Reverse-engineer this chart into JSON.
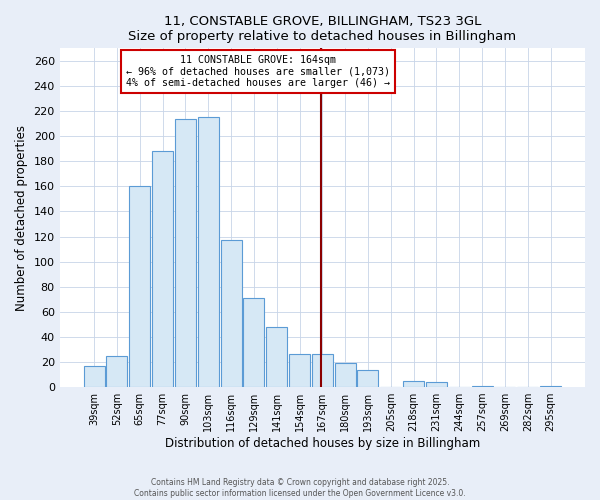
{
  "title": "11, CONSTABLE GROVE, BILLINGHAM, TS23 3GL",
  "subtitle": "Size of property relative to detached houses in Billingham",
  "xlabel": "Distribution of detached houses by size in Billingham",
  "ylabel": "Number of detached properties",
  "bar_labels": [
    "39sqm",
    "52sqm",
    "65sqm",
    "77sqm",
    "90sqm",
    "103sqm",
    "116sqm",
    "129sqm",
    "141sqm",
    "154sqm",
    "167sqm",
    "180sqm",
    "193sqm",
    "205sqm",
    "218sqm",
    "231sqm",
    "244sqm",
    "257sqm",
    "269sqm",
    "282sqm",
    "295sqm"
  ],
  "bar_values": [
    17,
    25,
    160,
    188,
    214,
    215,
    117,
    71,
    48,
    26,
    26,
    19,
    14,
    0,
    5,
    4,
    0,
    1,
    0,
    0,
    1
  ],
  "bar_color": "#d6e8f5",
  "bar_edge_color": "#5b9bd5",
  "vline_color": "#8b0000",
  "vline_x_index": 10,
  "annotation_title": "11 CONSTABLE GROVE: 164sqm",
  "annotation_line1": "← 96% of detached houses are smaller (1,073)",
  "annotation_line2": "4% of semi-detached houses are larger (46) →",
  "annotation_box_color": "white",
  "annotation_border_color": "#cc0000",
  "ylim": [
    0,
    270
  ],
  "yticks": [
    0,
    20,
    40,
    60,
    80,
    100,
    120,
    140,
    160,
    180,
    200,
    220,
    240,
    260
  ],
  "footer1": "Contains HM Land Registry data © Crown copyright and database right 2025.",
  "footer2": "Contains public sector information licensed under the Open Government Licence v3.0.",
  "bg_color": "#ffffff",
  "fig_bg_color": "#e8eef8",
  "grid_color": "#c8d4e8"
}
